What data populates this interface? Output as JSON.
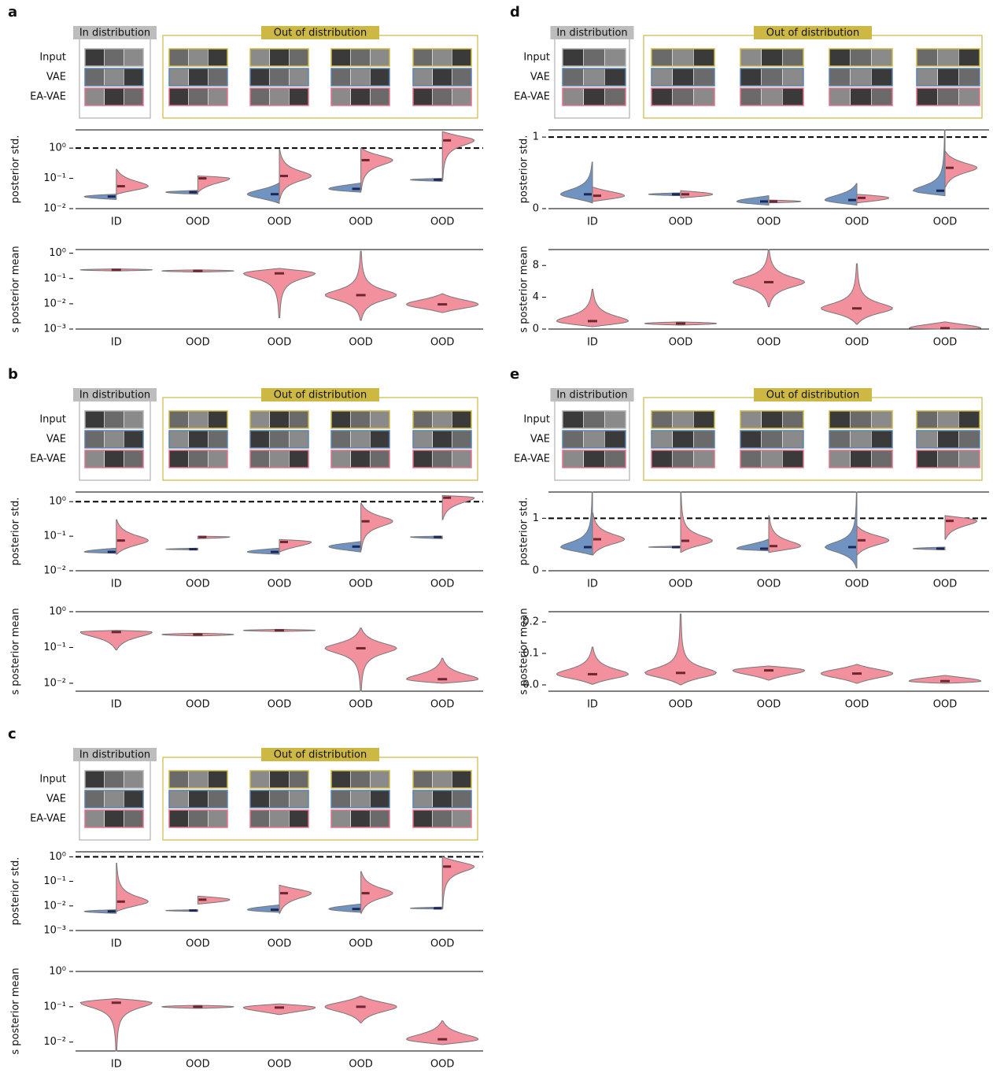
{
  "panels": [
    {
      "letter": "a",
      "in_label": "In distribution",
      "ood_label": "Out of distribution",
      "row_labels": [
        "Input",
        "VAE",
        "EA-VAE"
      ]
    },
    {
      "letter": "b",
      "in_label": "In distribution",
      "ood_label": "Out of distribution",
      "row_labels": [
        "Input",
        "VAE",
        "EA-VAE"
      ]
    },
    {
      "letter": "c",
      "in_label": "In distribution",
      "ood_label": "Out of distribution",
      "row_labels": [
        "Input",
        "VAE",
        "EA-VAE"
      ]
    },
    {
      "letter": "d",
      "in_label": "In distribution",
      "ood_label": "Out of distribution",
      "row_labels": [
        "Input",
        "VAE",
        "EA-VAE"
      ]
    },
    {
      "letter": "e",
      "in_label": "In distribution",
      "ood_label": "Out of distribution",
      "row_labels": [
        "Input",
        "VAE",
        "EA-VAE"
      ]
    }
  ],
  "chart_data": [
    {
      "type": "violin",
      "ylabel": "posterior std.",
      "log": true,
      "reference_line": 1,
      "categories": [
        "ID",
        "OOD",
        "OOD",
        "OOD",
        "OOD"
      ],
      "ylim": [
        0.01,
        4
      ],
      "yticks": [
        {
          "value": 0.01,
          "label": "10⁻²"
        },
        {
          "value": 0.1,
          "label": "10⁻¹"
        },
        {
          "value": 1,
          "label": "10⁰"
        }
      ],
      "series": [
        {
          "color": "#7193c2",
          "values": [
            0.025,
            0.035,
            0.03,
            0.045,
            0.09
          ],
          "mins": [
            0.02,
            0.03,
            0.015,
            0.035,
            0.08
          ],
          "maxs": [
            0.03,
            0.04,
            0.07,
            0.07,
            0.1
          ]
        },
        {
          "color": "#f2909d",
          "values": [
            0.055,
            0.1,
            0.12,
            0.4,
            1.8
          ],
          "mins": [
            0.03,
            0.035,
            0.02,
            0.04,
            0.09
          ],
          "maxs": [
            0.2,
            0.12,
            0.9,
            1.0,
            3.5
          ]
        }
      ]
    },
    {
      "type": "violin",
      "ylabel": "s posterior mean",
      "log": true,
      "categories": [
        "ID",
        "OOD",
        "OOD",
        "OOD",
        "OOD"
      ],
      "ylim": [
        0.001,
        1.4
      ],
      "yticks": [
        {
          "value": 0.001,
          "label": "10⁻³"
        },
        {
          "value": 0.01,
          "label": "10⁻²"
        },
        {
          "value": 0.1,
          "label": "10⁻¹"
        },
        {
          "value": 1,
          "label": "10⁰"
        }
      ],
      "series": [
        {
          "color": "#f2909d",
          "values": [
            0.22,
            0.2,
            0.16,
            0.022,
            0.0095
          ],
          "mins": [
            0.2,
            0.18,
            0.0028,
            0.0022,
            0.0045
          ],
          "maxs": [
            0.24,
            0.22,
            0.25,
            1.2,
            0.025
          ]
        }
      ]
    },
    {
      "type": "violin",
      "ylabel": "posterior std.",
      "log": true,
      "reference_line": 1,
      "categories": [
        "ID",
        "OOD",
        "OOD",
        "OOD",
        "OOD"
      ],
      "ylim": [
        0.01,
        1.9
      ],
      "yticks": [
        {
          "value": 0.01,
          "label": "10⁻²"
        },
        {
          "value": 0.1,
          "label": "10⁻¹"
        },
        {
          "value": 1,
          "label": "10⁰"
        }
      ],
      "series": [
        {
          "color": "#7193c2",
          "values": [
            0.035,
            0.042,
            0.035,
            0.05,
            0.095
          ],
          "mins": [
            0.032,
            0.04,
            0.03,
            0.035,
            0.085
          ],
          "maxs": [
            0.045,
            0.045,
            0.045,
            0.07,
            0.1
          ]
        },
        {
          "color": "#f2909d",
          "values": [
            0.075,
            0.095,
            0.068,
            0.27,
            1.3
          ],
          "mins": [
            0.03,
            0.085,
            0.035,
            0.04,
            0.3
          ],
          "maxs": [
            0.3,
            0.1,
            0.08,
            0.9,
            1.5
          ]
        }
      ]
    },
    {
      "type": "violin",
      "ylabel": "s posterior mean",
      "log": true,
      "categories": [
        "ID",
        "OOD",
        "OOD",
        "OOD",
        "OOD"
      ],
      "ylim": [
        0.006,
        1
      ],
      "yticks": [
        {
          "value": 0.01,
          "label": "10⁻²"
        },
        {
          "value": 0.1,
          "label": "10⁻¹"
        },
        {
          "value": 1,
          "label": "10⁰"
        }
      ],
      "series": [
        {
          "color": "#f2909d",
          "values": [
            0.27,
            0.23,
            0.3,
            0.095,
            0.013
          ],
          "mins": [
            0.085,
            0.21,
            0.28,
            0.006,
            0.01
          ],
          "maxs": [
            0.3,
            0.25,
            0.32,
            0.35,
            0.05
          ]
        }
      ]
    },
    {
      "type": "violin",
      "ylabel": "posterior std.",
      "log": true,
      "reference_line": 1,
      "categories": [
        "ID",
        "OOD",
        "OOD",
        "OOD",
        "OOD"
      ],
      "ylim": [
        0.001,
        1.6
      ],
      "yticks": [
        {
          "value": 0.001,
          "label": "10⁻³"
        },
        {
          "value": 0.01,
          "label": "10⁻²"
        },
        {
          "value": 0.1,
          "label": "10⁻¹"
        },
        {
          "value": 1,
          "label": "10⁰"
        }
      ],
      "series": [
        {
          "color": "#7193c2",
          "values": [
            0.006,
            0.0065,
            0.007,
            0.0075,
            0.008
          ],
          "mins": [
            0.005,
            0.006,
            0.0055,
            0.0055,
            0.0075
          ],
          "maxs": [
            0.007,
            0.007,
            0.011,
            0.012,
            0.009
          ]
        },
        {
          "color": "#f2909d",
          "values": [
            0.015,
            0.018,
            0.033,
            0.033,
            0.4
          ],
          "mins": [
            0.006,
            0.012,
            0.005,
            0.005,
            0.008
          ],
          "maxs": [
            0.55,
            0.025,
            0.07,
            0.25,
            1.0
          ]
        }
      ]
    },
    {
      "type": "violin",
      "ylabel": "s posterior mean",
      "log": true,
      "categories": [
        "ID",
        "OOD",
        "OOD",
        "OOD",
        "OOD"
      ],
      "ylim": [
        0.0056,
        1
      ],
      "yticks": [
        {
          "value": 0.01,
          "label": "10⁻²"
        },
        {
          "value": 0.1,
          "label": "10⁻¹"
        },
        {
          "value": 1,
          "label": "10⁰"
        }
      ],
      "series": [
        {
          "color": "#f2909d",
          "values": [
            0.13,
            0.1,
            0.095,
            0.1,
            0.012
          ],
          "mins": [
            0.0056,
            0.09,
            0.06,
            0.035,
            0.0085
          ],
          "maxs": [
            0.17,
            0.11,
            0.12,
            0.2,
            0.04
          ]
        }
      ]
    },
    {
      "type": "violin",
      "ylabel": "posterior std.",
      "log": false,
      "reference_line": 1,
      "categories": [
        "ID",
        "OOD",
        "OOD",
        "OOD",
        "OOD"
      ],
      "ylim": [
        0,
        1.1
      ],
      "yticks": [
        0,
        1
      ],
      "series": [
        {
          "color": "#7193c2",
          "values": [
            0.2,
            0.2,
            0.1,
            0.12,
            0.25
          ],
          "mins": [
            0.08,
            0.18,
            0.05,
            0.05,
            0.18
          ],
          "maxs": [
            0.65,
            0.22,
            0.18,
            0.35,
            1.1
          ]
        },
        {
          "color": "#f2909d",
          "values": [
            0.18,
            0.2,
            0.1,
            0.15,
            0.57
          ],
          "mins": [
            0.1,
            0.15,
            0.08,
            0.08,
            0.3
          ],
          "maxs": [
            0.3,
            0.25,
            0.12,
            0.2,
            0.8
          ]
        }
      ]
    },
    {
      "type": "violin",
      "ylabel": "s posterior mean",
      "log": false,
      "categories": [
        "ID",
        "OOD",
        "OOD",
        "OOD",
        "OOD"
      ],
      "ylim": [
        0,
        10
      ],
      "yticks": [
        0,
        4,
        8
      ],
      "series": [
        {
          "color": "#f2909d",
          "values": [
            1.0,
            0.7,
            5.9,
            2.6,
            0.1
          ],
          "mins": [
            0.3,
            0.5,
            2.8,
            0.6,
            0
          ],
          "maxs": [
            5.0,
            0.9,
            10,
            8.2,
            0.9
          ]
        }
      ]
    },
    {
      "type": "violin",
      "ylabel": "posterior std.",
      "log": false,
      "reference_line": 1,
      "categories": [
        "ID",
        "OOD",
        "OOD",
        "OOD",
        "OOD"
      ],
      "ylim": [
        0,
        1.5
      ],
      "yticks": [
        0,
        1
      ],
      "series": [
        {
          "color": "#7193c2",
          "values": [
            0.45,
            0.45,
            0.42,
            0.45,
            0.42
          ],
          "mins": [
            0.3,
            0.44,
            0.38,
            0.05,
            0.4
          ],
          "maxs": [
            1.5,
            0.47,
            0.6,
            1.5,
            0.45
          ]
        },
        {
          "color": "#f2909d",
          "values": [
            0.6,
            0.57,
            0.47,
            0.58,
            0.95
          ],
          "mins": [
            0.3,
            0.35,
            0.35,
            0.3,
            0.6
          ],
          "maxs": [
            1.1,
            1.5,
            1.05,
            0.85,
            1.05
          ]
        }
      ]
    },
    {
      "type": "violin",
      "ylabel": "s posterior mean",
      "log": false,
      "categories": [
        "ID",
        "OOD",
        "OOD",
        "OOD",
        "OOD"
      ],
      "ylim": [
        -0.02,
        0.2325
      ],
      "yticks": [
        {
          "value": 0,
          "label": "0.0"
        },
        {
          "value": 0.1,
          "label": "0.1"
        },
        {
          "value": 0.2,
          "label": "0.2"
        }
      ],
      "series": [
        {
          "color": "#f2909d",
          "values": [
            0.034,
            0.038,
            0.046,
            0.036,
            0.012
          ],
          "mins": [
            0.002,
            0,
            0.015,
            0.005,
            0.005
          ],
          "maxs": [
            0.12,
            0.225,
            0.06,
            0.065,
            0.03
          ]
        }
      ]
    }
  ]
}
